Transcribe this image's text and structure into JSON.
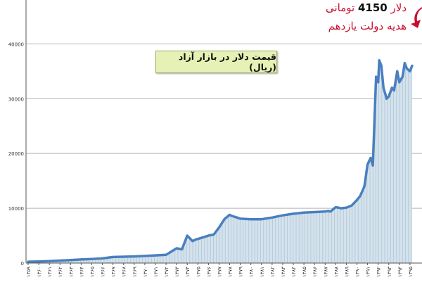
{
  "chart_data": {
    "type": "area",
    "title": "قیمت دلار در بازار آزاد (ریال)",
    "ylim": [
      0,
      48000
    ],
    "yticks": [
      0,
      10000,
      20000,
      30000,
      40000
    ],
    "ytick_labels": [
      "0",
      "10000",
      "20000",
      "30000",
      "40000"
    ],
    "xlim": [
      1359,
      1396
    ],
    "xticks": [
      1359,
      1360,
      1361,
      1362,
      1363,
      1364,
      1365,
      1366,
      1367,
      1368,
      1369,
      1370,
      1371,
      1372,
      1373,
      1374,
      1375,
      1376,
      1377,
      1378,
      1379,
      1380,
      1381,
      1382,
      1383,
      1384,
      1385,
      1386,
      1387,
      1388,
      1389,
      1390,
      1391,
      1392,
      1393,
      1394,
      1395
    ],
    "xtick_labels": [
      "۱۳۵۹",
      "۱۳۶۰",
      "۱۳۶۱",
      "۱۳۶۲",
      "۱۳۶۳",
      "۱۳۶۴",
      "۱۳۶۵",
      "۱۳۶۶",
      "۱۳۶۷",
      "۱۳۶۸",
      "۱۳۶۹",
      "۱۳۷۰",
      "۱۳۷۱",
      "۱۳۷۲",
      "۱۳۷۳",
      "۱۳۷۴",
      "۱۳۷۵",
      "۱۳۷۶",
      "۱۳۷۷",
      "۱۳۷۸",
      "۱۳۷۹",
      "۱۳۸۰",
      "۱۳۸۱",
      "۱۳۸۲",
      "۱۳۸۳",
      "۱۳۸۴",
      "۱۳۸۵",
      "۱۳۸۶",
      "۱۳۸۷",
      "۱۳۸۸",
      "۱۳۸۹",
      "۱۳۹۰",
      "۱۳۹۱",
      "۱۳۹۲",
      "۱۳۹۳",
      "۱۳۹۴",
      "۱۳۹۵"
    ],
    "grid": true,
    "series": [
      {
        "color": "#4a7fbf",
        "fill": "#d3e2ec",
        "x": [
          1359,
          1360,
          1361,
          1362,
          1363,
          1364,
          1365,
          1366,
          1367,
          1368,
          1369,
          1370,
          1371,
          1372,
          1373,
          1373.5,
          1374,
          1374.5,
          1374.8,
          1375,
          1375.5,
          1376,
          1376.5,
          1377,
          1377.5,
          1378,
          1378.2,
          1378.7,
          1379,
          1380,
          1381,
          1382,
          1383,
          1384,
          1385,
          1386,
          1387,
          1387.3,
          1387.5,
          1388,
          1388.5,
          1389,
          1389.5,
          1390,
          1390.3,
          1390.7,
          1391,
          1391.3,
          1391.5,
          1391.8,
          1392,
          1392.1,
          1392.3,
          1392.5,
          1392.8,
          1393,
          1393.3,
          1393.5,
          1393.8,
          1394,
          1394.3,
          1394.5,
          1394.7,
          1395,
          1395.2
        ],
        "y": [
          250,
          300,
          350,
          450,
          550,
          650,
          750,
          850,
          1100,
          1150,
          1200,
          1300,
          1400,
          1500,
          2700,
          2500,
          5000,
          4000,
          4300,
          4400,
          4700,
          5000,
          5200,
          6500,
          8000,
          8800,
          8600,
          8300,
          8100,
          8000,
          8000,
          8300,
          8700,
          9000,
          9200,
          9300,
          9400,
          9500,
          9400,
          10200,
          10000,
          10100,
          10500,
          11500,
          12200,
          14000,
          18000,
          19200,
          17800,
          34000,
          33000,
          37000,
          36000,
          32000,
          30000,
          30400,
          32000,
          31500,
          35000,
          33000,
          34000,
          36500,
          35500,
          35000,
          36000
        ]
      }
    ]
  },
  "annotation": {
    "line1_prefix": "دلار",
    "line1_number": "4150",
    "line1_suffix": "تومانی",
    "line2": "هدیه دولت یازدهم",
    "accent_color": "#c8102e"
  }
}
